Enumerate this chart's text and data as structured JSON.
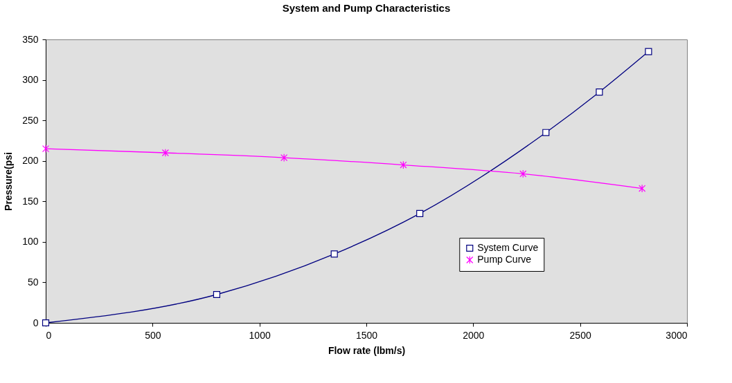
{
  "chart_data": {
    "type": "line",
    "title": "System and Pump Characteristics",
    "xlabel": "Flow rate (lbm/s)",
    "ylabel": "Pressure(psi",
    "series": [
      {
        "name": "System Curve",
        "color": "#000080",
        "marker": "square",
        "x": [
          0,
          800,
          1350,
          1750,
          2340,
          2590,
          2820
        ],
        "values": [
          0,
          35,
          85,
          135,
          235,
          285,
          335
        ]
      },
      {
        "name": "Pump Curve",
        "color": "#ff00ff",
        "marker": "cross",
        "x": [
          0,
          560,
          1115,
          1673,
          2233,
          2790
        ],
        "values": [
          215,
          210,
          204,
          195,
          184,
          166
        ]
      }
    ],
    "xlim": [
      0,
      3000
    ],
    "xticks": [
      0,
      500,
      1000,
      1500,
      2000,
      2500,
      3000
    ],
    "ylim": [
      0,
      350
    ],
    "yticks": [
      0,
      50,
      100,
      150,
      200,
      250,
      300,
      350
    ],
    "grid": false,
    "legend": "right",
    "line_style": "solid"
  }
}
